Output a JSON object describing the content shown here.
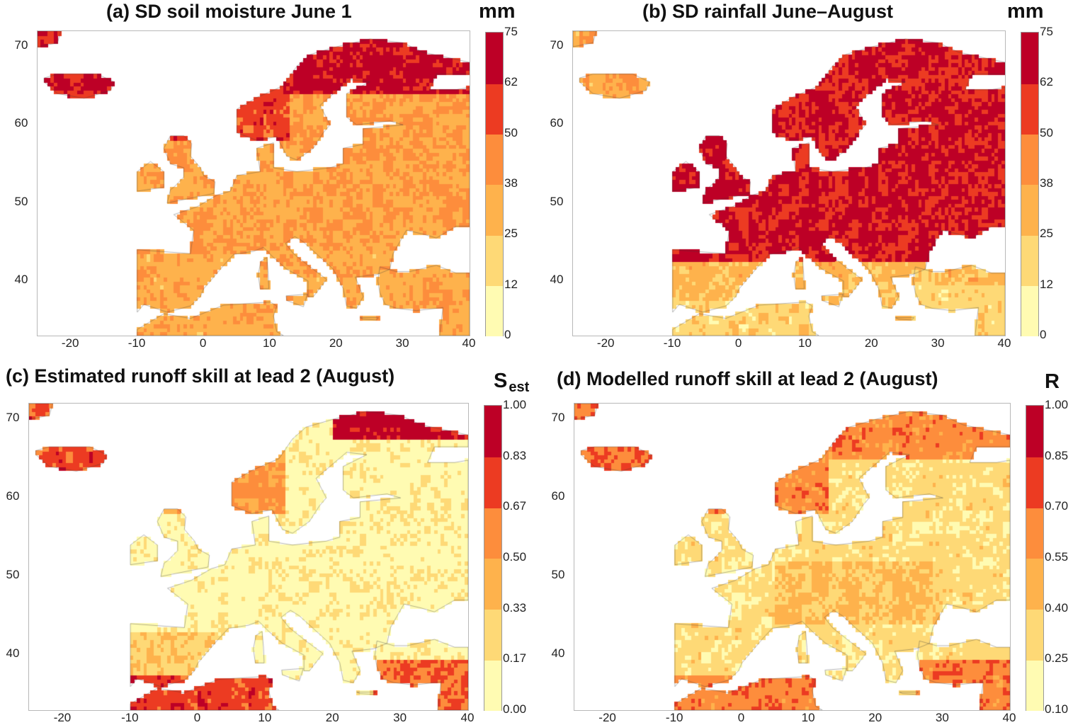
{
  "palette": [
    "#FFFBB2",
    "#FED976",
    "#FEB24C",
    "#FD8D3C",
    "#EC3B22",
    "#BD0026"
  ],
  "axes": {
    "lon_ticks": [
      "-20",
      "-10",
      "0",
      "10",
      "20",
      "30",
      "40"
    ],
    "lat_ticks": [
      "40",
      "50",
      "60",
      "70"
    ],
    "lon_range": [
      -25,
      40
    ],
    "lat_range": [
      33,
      72
    ]
  },
  "panels": [
    {
      "id": "a",
      "title": "(a) SD soil moisture June 1",
      "unit": "mm",
      "unit_sub": "",
      "colorbar_ticks": [
        "0",
        "12",
        "25",
        "38",
        "50",
        "62",
        "75"
      ]
    },
    {
      "id": "b",
      "title": "(b) SD rainfall June–August",
      "unit": "mm",
      "unit_sub": "",
      "colorbar_ticks": [
        "0",
        "12",
        "25",
        "38",
        "50",
        "62",
        "75"
      ]
    },
    {
      "id": "c",
      "title": "(c) Estimated runoff skill at lead 2 (August)",
      "unit": "S",
      "unit_sub": "est",
      "colorbar_ticks": [
        "0.00",
        "0.17",
        "0.33",
        "0.50",
        "0.67",
        "0.83",
        "1.00"
      ]
    },
    {
      "id": "d",
      "title": "(d) Modelled runoff skill at lead 2 (August)",
      "unit": "R",
      "unit_sub": "",
      "colorbar_ticks": [
        "0.10",
        "0.25",
        "0.40",
        "0.55",
        "0.70",
        "0.85",
        "1.00"
      ]
    }
  ]
}
